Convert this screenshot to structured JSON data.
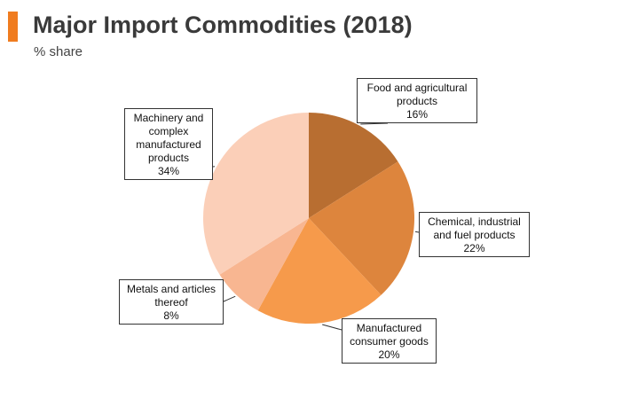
{
  "header": {
    "title": "Major Import Commodities (2018)",
    "subtitle": "% share",
    "accent_color": "#f07c1f"
  },
  "chart_data": {
    "type": "pie",
    "title": "Major Import Commodities (2018)",
    "subtitle": "% share",
    "unit": "%",
    "start": "12 o'clock",
    "direction": "clockwise",
    "labels_style": "callout boxes",
    "slices": [
      {
        "label": "Food and agricultural products",
        "value": 16,
        "value_label": "16%",
        "color": "#b86e31"
      },
      {
        "label": "Chemical, industrial and fuel products",
        "value": 22,
        "value_label": "22%",
        "color": "#dd853d"
      },
      {
        "label": "Manufactured consumer goods",
        "value": 20,
        "value_label": "20%",
        "color": "#f69a4b"
      },
      {
        "label": "Metals and articles thereof",
        "value": 8,
        "value_label": "8%",
        "color": "#f8b691"
      },
      {
        "label": "Machinery and complex manufactured products",
        "value": 34,
        "value_label": "34%",
        "color": "#fbcfb8"
      }
    ]
  }
}
